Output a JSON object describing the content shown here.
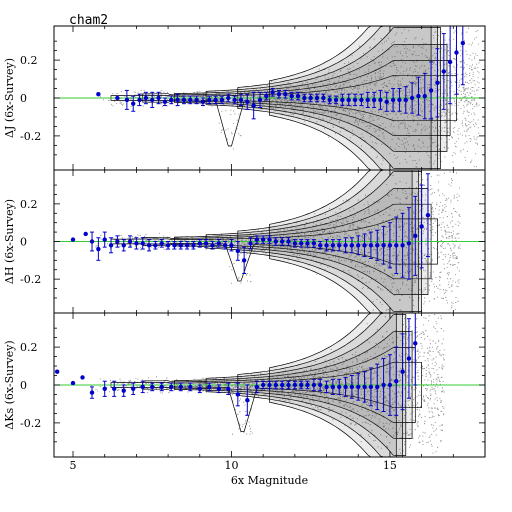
{
  "figure": {
    "field_label": "cham2",
    "xlabel": "6x Magnitude"
  },
  "chart_data": [
    {
      "type": "scatter",
      "panel": "J",
      "ylabel": "ΔJ (6x-Survey)",
      "xlim": [
        4.4,
        18.0
      ],
      "ylim": [
        -0.38,
        0.38
      ],
      "xticks": [
        5,
        10,
        15
      ],
      "yticks": [
        -0.2,
        0,
        0.2
      ],
      "reference_line": 0,
      "colors": {
        "points": "#0000cc",
        "reference": "#33cc33",
        "scatter": "#9a9a9a",
        "contours": "#000000"
      },
      "series": [
        {
          "x": [
            5.8,
            6.4,
            6.7,
            6.9,
            7.1,
            7.3,
            7.5,
            7.7,
            7.9,
            8.1,
            8.3,
            8.5,
            8.7,
            8.9,
            9.1,
            9.3,
            9.5,
            9.7,
            9.9,
            10.1,
            10.3,
            10.5,
            10.7,
            10.9,
            11.1,
            11.3,
            11.5,
            11.7,
            11.9,
            12.1,
            12.3,
            12.5,
            12.7,
            12.9,
            13.1,
            13.3,
            13.5,
            13.7,
            13.9,
            14.1,
            14.3,
            14.5,
            14.7,
            14.9,
            15.1,
            15.3,
            15.5,
            15.7,
            15.9,
            16.1,
            16.3,
            16.5,
            16.7,
            16.9,
            17.1,
            17.3
          ],
          "y": [
            0.02,
            0.0,
            -0.01,
            -0.03,
            -0.01,
            0.0,
            -0.01,
            0.0,
            -0.02,
            -0.01,
            -0.01,
            -0.01,
            -0.01,
            -0.01,
            -0.02,
            -0.01,
            -0.01,
            -0.01,
            0.0,
            -0.01,
            -0.01,
            -0.02,
            -0.04,
            -0.01,
            0.01,
            0.03,
            0.02,
            0.02,
            0.01,
            0.01,
            0.0,
            0.0,
            0.0,
            0.0,
            -0.01,
            -0.01,
            -0.01,
            -0.01,
            -0.01,
            -0.01,
            -0.01,
            -0.01,
            -0.01,
            -0.02,
            -0.01,
            -0.01,
            -0.01,
            0.0,
            0.01,
            0.01,
            0.04,
            0.08,
            0.14,
            0.19,
            0.24,
            0.29
          ],
          "err": [
            0.0,
            0.0,
            0.05,
            0.04,
            0.03,
            0.03,
            0.04,
            0.03,
            0.02,
            0.02,
            0.03,
            0.02,
            0.02,
            0.02,
            0.02,
            0.02,
            0.02,
            0.02,
            0.02,
            0.02,
            0.03,
            0.04,
            0.07,
            0.04,
            0.02,
            0.02,
            0.02,
            0.02,
            0.02,
            0.02,
            0.02,
            0.02,
            0.02,
            0.02,
            0.02,
            0.02,
            0.03,
            0.03,
            0.03,
            0.03,
            0.04,
            0.04,
            0.05,
            0.05,
            0.06,
            0.06,
            0.07,
            0.08,
            0.1,
            0.12,
            0.15,
            0.18,
            0.2,
            0.22,
            0.22,
            0.22
          ]
        }
      ]
    },
    {
      "type": "scatter",
      "panel": "H",
      "ylabel": "ΔH (6x-Survey)",
      "xlim": [
        4.4,
        18.0
      ],
      "ylim": [
        -0.38,
        0.38
      ],
      "xticks": [
        5,
        10,
        15
      ],
      "yticks": [
        -0.2,
        0,
        0.2
      ],
      "reference_line": 0,
      "colors": {
        "points": "#0000cc",
        "reference": "#33cc33",
        "scatter": "#9a9a9a",
        "contours": "#000000"
      },
      "series": [
        {
          "x": [
            5.0,
            5.4,
            5.6,
            5.8,
            6.0,
            6.2,
            6.4,
            6.6,
            6.8,
            7.0,
            7.2,
            7.4,
            7.6,
            7.8,
            8.0,
            8.2,
            8.4,
            8.6,
            8.8,
            9.0,
            9.2,
            9.4,
            9.6,
            9.8,
            10.0,
            10.2,
            10.4,
            10.6,
            10.8,
            11.0,
            11.2,
            11.4,
            11.6,
            11.8,
            12.0,
            12.2,
            12.4,
            12.6,
            12.8,
            13.0,
            13.2,
            13.4,
            13.6,
            13.8,
            14.0,
            14.2,
            14.4,
            14.6,
            14.8,
            15.0,
            15.2,
            15.4,
            15.6,
            15.8,
            16.0,
            16.2
          ],
          "y": [
            0.01,
            0.04,
            0.0,
            -0.04,
            0.01,
            -0.02,
            0.0,
            -0.02,
            0.0,
            -0.01,
            -0.01,
            -0.02,
            -0.02,
            -0.01,
            -0.02,
            -0.02,
            -0.02,
            -0.02,
            -0.02,
            -0.01,
            -0.01,
            -0.02,
            -0.01,
            -0.02,
            -0.02,
            -0.05,
            -0.1,
            -0.01,
            0.01,
            0.01,
            0.01,
            0.0,
            0.0,
            0.0,
            -0.01,
            -0.01,
            -0.01,
            -0.01,
            -0.02,
            -0.02,
            -0.02,
            -0.02,
            -0.02,
            -0.02,
            -0.02,
            -0.02,
            -0.02,
            -0.02,
            -0.02,
            -0.02,
            -0.02,
            -0.02,
            -0.01,
            0.03,
            0.08,
            0.14
          ],
          "err": [
            0.0,
            0.0,
            0.05,
            0.06,
            0.04,
            0.04,
            0.03,
            0.03,
            0.03,
            0.03,
            0.03,
            0.03,
            0.02,
            0.02,
            0.02,
            0.02,
            0.02,
            0.02,
            0.02,
            0.02,
            0.02,
            0.02,
            0.02,
            0.02,
            0.03,
            0.05,
            0.07,
            0.03,
            0.02,
            0.02,
            0.02,
            0.02,
            0.02,
            0.02,
            0.02,
            0.02,
            0.02,
            0.02,
            0.02,
            0.03,
            0.03,
            0.03,
            0.04,
            0.04,
            0.05,
            0.06,
            0.07,
            0.08,
            0.1,
            0.12,
            0.15,
            0.17,
            0.19,
            0.21,
            0.22,
            0.22
          ]
        }
      ]
    },
    {
      "type": "scatter",
      "panel": "Ks",
      "ylabel": "ΔKs (6x-Survey)",
      "xlim": [
        4.4,
        18.0
      ],
      "ylim": [
        -0.38,
        0.38
      ],
      "xticks": [
        5,
        10,
        15
      ],
      "yticks": [
        -0.2,
        0,
        0.2
      ],
      "reference_line": 0,
      "colors": {
        "points": "#0000cc",
        "reference": "#33cc33",
        "scatter": "#9a9a9a",
        "contours": "#000000"
      },
      "series": [
        {
          "x": [
            4.5,
            5.0,
            5.3,
            5.6,
            6.0,
            6.3,
            6.6,
            6.9,
            7.2,
            7.5,
            7.8,
            8.1,
            8.4,
            8.7,
            9.0,
            9.3,
            9.6,
            9.9,
            10.2,
            10.5,
            10.8,
            11.0,
            11.2,
            11.4,
            11.6,
            11.8,
            12.0,
            12.2,
            12.4,
            12.6,
            12.8,
            13.0,
            13.2,
            13.4,
            13.6,
            13.8,
            14.0,
            14.2,
            14.4,
            14.6,
            14.8,
            15.0,
            15.2,
            15.4,
            15.6,
            15.8
          ],
          "y": [
            0.07,
            0.01,
            0.04,
            -0.04,
            -0.02,
            -0.02,
            -0.03,
            -0.02,
            -0.01,
            -0.01,
            -0.01,
            -0.01,
            -0.01,
            -0.01,
            -0.02,
            -0.01,
            -0.02,
            -0.02,
            -0.05,
            -0.08,
            -0.01,
            0.0,
            0.0,
            0.0,
            0.0,
            0.0,
            0.0,
            0.0,
            0.0,
            0.0,
            0.0,
            -0.01,
            -0.01,
            -0.01,
            -0.01,
            -0.01,
            -0.01,
            -0.01,
            -0.01,
            -0.01,
            0.0,
            0.0,
            0.02,
            0.07,
            0.14,
            0.22
          ],
          "err": [
            0.0,
            0.0,
            0.0,
            0.03,
            0.04,
            0.04,
            0.03,
            0.03,
            0.03,
            0.02,
            0.02,
            0.02,
            0.02,
            0.02,
            0.02,
            0.02,
            0.02,
            0.03,
            0.06,
            0.08,
            0.03,
            0.02,
            0.02,
            0.02,
            0.02,
            0.02,
            0.02,
            0.02,
            0.02,
            0.03,
            0.03,
            0.03,
            0.04,
            0.04,
            0.05,
            0.06,
            0.07,
            0.08,
            0.1,
            0.12,
            0.14,
            0.16,
            0.18,
            0.2,
            0.21,
            0.22
          ]
        }
      ]
    }
  ]
}
